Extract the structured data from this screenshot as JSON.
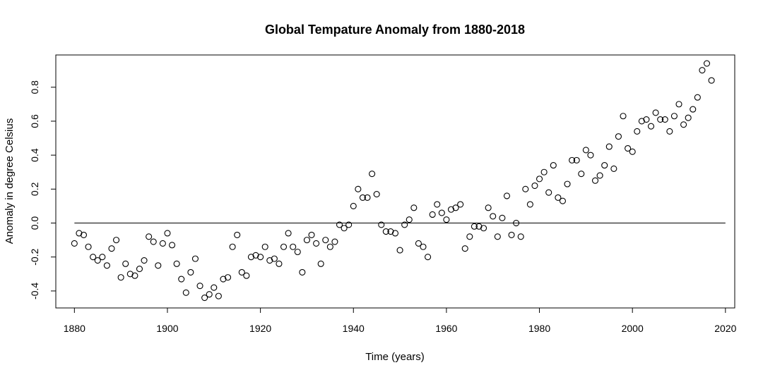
{
  "chart_data": {
    "type": "scatter",
    "title": "Global Tempature Anomaly from 1880-2018",
    "xlabel": "Time (years)",
    "ylabel": "Anomaly in degree Celsius",
    "xlim": [
      1876,
      2022
    ],
    "ylim": [
      -0.5,
      0.99
    ],
    "xticks": [
      1880,
      1900,
      1920,
      1940,
      1960,
      1980,
      2000,
      2020
    ],
    "yticks": [
      -0.4,
      -0.2,
      0.0,
      0.2,
      0.4,
      0.6,
      0.8
    ],
    "ytick_labels": [
      "-0.4",
      "-0.2",
      "0.0",
      "0.2",
      "0.4",
      "0.6",
      "0.8"
    ],
    "reference_line": {
      "y": 0,
      "x_from": 1880,
      "x_to": 2020
    },
    "grid": false,
    "x": [
      1880,
      1881,
      1882,
      1883,
      1884,
      1885,
      1886,
      1887,
      1888,
      1889,
      1890,
      1891,
      1892,
      1893,
      1894,
      1895,
      1896,
      1897,
      1898,
      1899,
      1900,
      1901,
      1902,
      1903,
      1904,
      1905,
      1906,
      1907,
      1908,
      1909,
      1910,
      1911,
      1912,
      1913,
      1914,
      1915,
      1916,
      1917,
      1918,
      1919,
      1920,
      1921,
      1922,
      1923,
      1924,
      1925,
      1926,
      1927,
      1928,
      1929,
      1930,
      1931,
      1932,
      1933,
      1934,
      1935,
      1936,
      1937,
      1938,
      1939,
      1940,
      1941,
      1942,
      1943,
      1944,
      1945,
      1946,
      1947,
      1948,
      1949,
      1950,
      1951,
      1952,
      1953,
      1954,
      1955,
      1956,
      1957,
      1958,
      1959,
      1960,
      1961,
      1962,
      1963,
      1964,
      1965,
      1966,
      1967,
      1968,
      1969,
      1970,
      1971,
      1972,
      1973,
      1974,
      1975,
      1976,
      1977,
      1978,
      1979,
      1980,
      1981,
      1982,
      1983,
      1984,
      1985,
      1986,
      1987,
      1988,
      1989,
      1990,
      1991,
      1992,
      1993,
      1994,
      1995,
      1996,
      1997,
      1998,
      1999,
      2000,
      2001,
      2002,
      2003,
      2004,
      2005,
      2006,
      2007,
      2008,
      2009,
      2010,
      2011,
      2012,
      2013,
      2014,
      2015,
      2016,
      2017
    ],
    "y": [
      -0.12,
      -0.06,
      -0.07,
      -0.14,
      -0.2,
      -0.22,
      -0.2,
      -0.25,
      -0.15,
      -0.1,
      -0.32,
      -0.24,
      -0.3,
      -0.31,
      -0.27,
      -0.22,
      -0.08,
      -0.11,
      -0.25,
      -0.12,
      -0.06,
      -0.13,
      -0.24,
      -0.33,
      -0.41,
      -0.29,
      -0.21,
      -0.37,
      -0.44,
      -0.42,
      -0.38,
      -0.43,
      -0.33,
      -0.32,
      -0.14,
      -0.07,
      -0.29,
      -0.31,
      -0.2,
      -0.19,
      -0.2,
      -0.14,
      -0.22,
      -0.21,
      -0.24,
      -0.14,
      -0.06,
      -0.14,
      -0.17,
      -0.29,
      -0.1,
      -0.07,
      -0.12,
      -0.24,
      -0.1,
      -0.14,
      -0.11,
      -0.01,
      -0.03,
      -0.01,
      0.1,
      0.2,
      0.15,
      0.15,
      0.29,
      0.17,
      -0.01,
      -0.05,
      -0.05,
      -0.06,
      -0.16,
      -0.01,
      0.02,
      0.09,
      -0.12,
      -0.14,
      -0.2,
      0.05,
      0.11,
      0.06,
      0.02,
      0.08,
      0.09,
      0.11,
      -0.15,
      -0.08,
      -0.02,
      -0.02,
      -0.03,
      0.09,
      0.04,
      -0.08,
      0.03,
      0.16,
      -0.07,
      0.0,
      -0.08,
      0.2,
      0.11,
      0.22,
      0.26,
      0.3,
      0.18,
      0.34,
      0.15,
      0.13,
      0.23,
      0.37,
      0.37,
      0.29,
      0.43,
      0.4,
      0.25,
      0.28,
      0.34,
      0.45,
      0.32,
      0.51,
      0.63,
      0.44,
      0.42,
      0.54,
      0.6,
      0.61,
      0.57,
      0.65,
      0.61,
      0.61,
      0.54,
      0.63,
      0.7,
      0.58,
      0.62,
      0.67,
      0.74,
      0.9,
      0.94,
      0.84
    ]
  }
}
